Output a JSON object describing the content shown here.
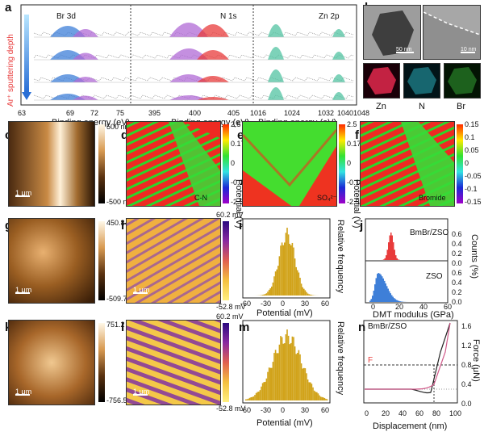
{
  "panels": {
    "a": {
      "label": "a",
      "ylabel": "Ar⁺ sputtering depth",
      "xlabel": "Binding energy (eV)",
      "peaks": [
        "Br 3d",
        "N 1s",
        "Zn 2p"
      ],
      "ticks": [
        "63",
        "69",
        "72",
        "75",
        "395",
        "400",
        "405",
        "1016",
        "1024",
        "1032",
        "1040",
        "1048"
      ]
    },
    "b": {
      "label": "b",
      "scale1": "50 nm",
      "scale2": "10 nm",
      "maps": [
        "Zn",
        "N",
        "Br"
      ]
    },
    "c": {
      "label": "c",
      "scale": "1 μm",
      "cmax": "500 nm",
      "cmin": "-500 nm"
    },
    "d": {
      "label": "d",
      "corner": "C-N",
      "ticks": [
        "2.5",
        "0.17",
        "0",
        "-0.17",
        "-2.5"
      ]
    },
    "e": {
      "label": "e",
      "corner": "SO₄²⁻",
      "ticks": [
        "2.5",
        "0.17",
        "0",
        "-0.17",
        "-2.5"
      ]
    },
    "f": {
      "label": "f",
      "corner": "Bromide",
      "ticks": [
        "0.15",
        "0.1",
        "0.05",
        "0",
        "-0.05",
        "-0.1",
        "-0.15"
      ]
    },
    "def_ylabel": "Potential (V)",
    "g": {
      "label": "g",
      "scale": "1 μm",
      "cmax": "450.8 nm",
      "cmin": "-509.7 nm"
    },
    "h": {
      "label": "h",
      "scale": "1 μm",
      "cmax": "60.2 mV",
      "cmin": "-52.8 mV"
    },
    "i": {
      "label": "i",
      "xlabel": "Potential (mV)",
      "ylabel": "Relative frequency",
      "ticks": [
        "-60",
        "-30",
        "0",
        "30",
        "60"
      ]
    },
    "j": {
      "label": "j",
      "xlabel": "DMT modulus (GPa)",
      "ylabel": "Counts (%)",
      "series": [
        "BmBr/ZSO",
        "ZSO"
      ],
      "yticks_top": [
        "0.6",
        "0.4",
        "0.2",
        "0.0"
      ],
      "yticks_bot": [
        "0.6",
        "0.4",
        "0.2",
        "0.0"
      ],
      "xticks": [
        "0",
        "20",
        "40",
        "60"
      ]
    },
    "k": {
      "label": "k",
      "scale": "1 μm",
      "cmax": "751.2 nm",
      "cmin": "-756.5 nm"
    },
    "l": {
      "label": "l",
      "scale": "1 μm",
      "cmax": "60.2 mV",
      "cmin": "-52.8 mV"
    },
    "m": {
      "label": "m",
      "xlabel": "Potential (mV)",
      "ylabel": "Relative frequency",
      "ticks": [
        "-60",
        "-30",
        "0",
        "30",
        "60"
      ]
    },
    "n": {
      "label": "n",
      "series": "BmBr/ZSO",
      "marker": "F",
      "xlabel": "Displacement (nm)",
      "ylabel": "Force (μN)",
      "yticks": [
        "1.6",
        "1.2",
        "0.8",
        "0.4",
        "0.0"
      ],
      "xticks": [
        "0",
        "20",
        "40",
        "60",
        "80",
        "100"
      ]
    }
  },
  "colors": {
    "accent_red": "#e83b3b",
    "teal": "#52c3a2",
    "blue": "#3e7fd8",
    "purple": "#b06ad6"
  }
}
